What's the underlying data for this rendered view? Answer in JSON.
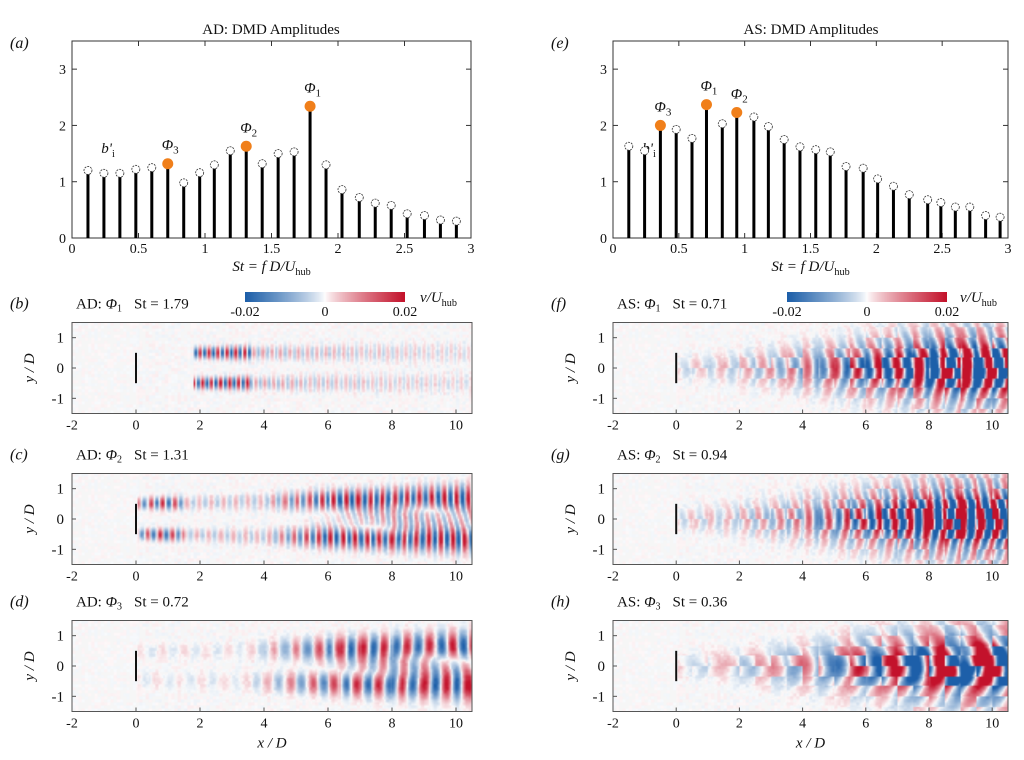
{
  "colors": {
    "marker_highlight": "#f07f1a",
    "stem": "#000000",
    "cmap_negative": "#1d5fa9",
    "cmap_zero": "#ffffff",
    "cmap_positive": "#c3122b"
  },
  "chart_data": [
    {
      "panel": "(a)",
      "type": "bar",
      "style": "stem",
      "title": "AD: DMD Amplitudes",
      "xlabel": "St = f D/U_hub",
      "ylabel": "b'_i",
      "xlim": [
        0,
        3
      ],
      "ylim": [
        0,
        3.5
      ],
      "xticks": [
        "0",
        "0.5",
        "1",
        "1.5",
        "2",
        "2.5",
        "3"
      ],
      "yticks": [
        "0",
        "1",
        "2",
        "3"
      ],
      "x": [
        0.12,
        0.24,
        0.36,
        0.48,
        0.6,
        0.72,
        0.84,
        0.96,
        1.07,
        1.19,
        1.31,
        1.43,
        1.55,
        1.67,
        1.79,
        1.91,
        2.03,
        2.16,
        2.28,
        2.4,
        2.52,
        2.65,
        2.77,
        2.89
      ],
      "values": [
        1.2,
        1.15,
        1.15,
        1.22,
        1.25,
        1.32,
        0.98,
        1.16,
        1.3,
        1.55,
        1.63,
        1.32,
        1.5,
        1.53,
        2.34,
        1.3,
        0.86,
        0.72,
        0.62,
        0.58,
        0.43,
        0.4,
        0.32,
        0.3
      ],
      "highlights": [
        {
          "label": "Φ1",
          "sub": "1",
          "x": 1.79
        },
        {
          "label": "Φ2",
          "sub": "2",
          "x": 1.31
        },
        {
          "label": "Φ3",
          "sub": "3",
          "x": 0.72
        }
      ],
      "grid": false
    },
    {
      "panel": "(e)",
      "type": "bar",
      "style": "stem",
      "title": "AS: DMD Amplitudes",
      "xlabel": "St = f D/U_hub",
      "ylabel": "b'_i",
      "xlim": [
        0,
        3
      ],
      "ylim": [
        0,
        3.5
      ],
      "xticks": [
        "0",
        "0.5",
        "1",
        "1.5",
        "2",
        "2.5",
        "3"
      ],
      "yticks": [
        "0",
        "1",
        "2",
        "3"
      ],
      "x": [
        0.12,
        0.24,
        0.36,
        0.48,
        0.6,
        0.71,
        0.83,
        0.94,
        1.07,
        1.18,
        1.3,
        1.42,
        1.54,
        1.65,
        1.77,
        1.9,
        2.01,
        2.13,
        2.25,
        2.39,
        2.49,
        2.6,
        2.71,
        2.83,
        2.94
      ],
      "values": [
        1.63,
        1.55,
        2.0,
        1.93,
        1.77,
        2.37,
        2.03,
        2.23,
        2.15,
        1.98,
        1.75,
        1.62,
        1.57,
        1.53,
        1.27,
        1.24,
        1.05,
        0.92,
        0.77,
        0.68,
        0.63,
        0.55,
        0.55,
        0.4,
        0.37
      ],
      "highlights": [
        {
          "label": "Φ1",
          "sub": "1",
          "x": 0.71
        },
        {
          "label": "Φ2",
          "sub": "2",
          "x": 0.94
        },
        {
          "label": "Φ3",
          "sub": "3",
          "x": 0.36
        }
      ],
      "grid": false
    },
    {
      "panel": "(b)",
      "type": "heatmap",
      "case": "AD",
      "mode": "Φ",
      "mode_sub": "1",
      "st_label": "St = 1.79",
      "xlabel": "",
      "ylabel": "y / D",
      "xlim": [
        -2,
        10.5
      ],
      "ylim": [
        -1.5,
        1.5
      ],
      "xticks": [
        "-2",
        "0",
        "2",
        "4",
        "6",
        "8",
        "10"
      ],
      "yticks": [
        "1",
        "0",
        "-1"
      ]
    },
    {
      "panel": "(c)",
      "type": "heatmap",
      "case": "AD",
      "mode": "Φ",
      "mode_sub": "2",
      "st_label": "St = 1.31",
      "xlabel": "",
      "ylabel": "y / D",
      "xlim": [
        -2,
        10.5
      ],
      "ylim": [
        -1.5,
        1.5
      ],
      "xticks": [
        "-2",
        "0",
        "2",
        "4",
        "6",
        "8",
        "10"
      ],
      "yticks": [
        "1",
        "0",
        "-1"
      ]
    },
    {
      "panel": "(d)",
      "type": "heatmap",
      "case": "AD",
      "mode": "Φ",
      "mode_sub": "3",
      "st_label": "St = 0.72",
      "xlabel": "x / D",
      "ylabel": "y / D",
      "xlim": [
        -2,
        10.5
      ],
      "ylim": [
        -1.5,
        1.5
      ],
      "xticks": [
        "-2",
        "0",
        "2",
        "4",
        "6",
        "8",
        "10"
      ],
      "yticks": [
        "1",
        "0",
        "-1"
      ]
    },
    {
      "panel": "(f)",
      "type": "heatmap",
      "case": "AS",
      "mode": "Φ",
      "mode_sub": "1",
      "st_label": "St = 0.71",
      "xlabel": "",
      "ylabel": "y / D",
      "xlim": [
        -2,
        10.5
      ],
      "ylim": [
        -1.5,
        1.5
      ],
      "xticks": [
        "-2",
        "0",
        "2",
        "4",
        "6",
        "8",
        "10"
      ],
      "yticks": [
        "1",
        "0",
        "-1"
      ]
    },
    {
      "panel": "(g)",
      "type": "heatmap",
      "case": "AS",
      "mode": "Φ",
      "mode_sub": "2",
      "st_label": "St = 0.94",
      "xlabel": "",
      "ylabel": "y / D",
      "xlim": [
        -2,
        10.5
      ],
      "ylim": [
        -1.5,
        1.5
      ],
      "xticks": [
        "-2",
        "0",
        "2",
        "4",
        "6",
        "8",
        "10"
      ],
      "yticks": [
        "1",
        "0",
        "-1"
      ]
    },
    {
      "panel": "(h)",
      "type": "heatmap",
      "case": "AS",
      "mode": "Φ",
      "mode_sub": "3",
      "st_label": "St = 0.36",
      "xlabel": "x / D",
      "ylabel": "y / D",
      "xlim": [
        -2,
        10.5
      ],
      "ylim": [
        -1.5,
        1.5
      ],
      "xticks": [
        "-2",
        "0",
        "2",
        "4",
        "6",
        "8",
        "10"
      ],
      "yticks": [
        "1",
        "0",
        "-1"
      ]
    }
  ],
  "colorbar": {
    "label": "v/U_hub",
    "ticks": [
      "-0.02",
      "0",
      "0.02"
    ],
    "range": [
      -0.02,
      0.02
    ]
  }
}
